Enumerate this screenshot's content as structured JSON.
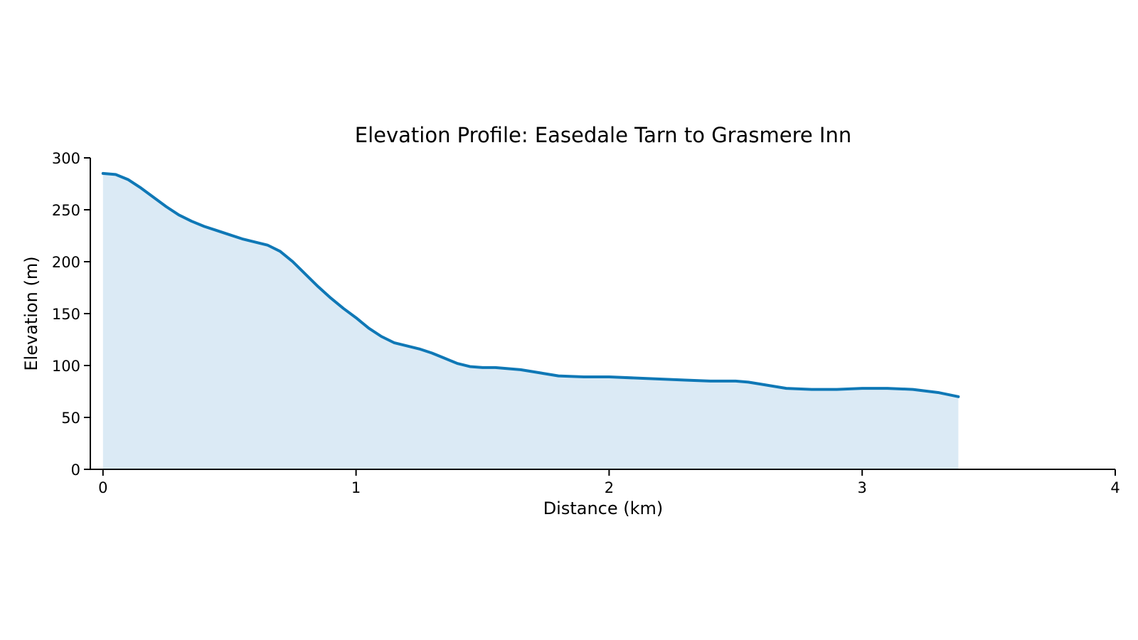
{
  "chart_data": {
    "type": "area",
    "title": "Elevation Profile: Easedale Tarn to Grasmere Inn",
    "xlabel": "Distance (km)",
    "ylabel": "Elevation (m)",
    "xlim": [
      -0.05,
      4
    ],
    "ylim": [
      0,
      300
    ],
    "xticks": [
      "0",
      "1",
      "2",
      "3",
      "4"
    ],
    "yticks": [
      "0",
      "50",
      "100",
      "150",
      "200",
      "250",
      "300"
    ],
    "grid": false,
    "legend": "none",
    "colors": {
      "line": "#0f78b6",
      "fill": "#dbeaf5"
    },
    "series": [
      {
        "x": [
          0,
          0.05,
          0.1,
          0.15,
          0.2,
          0.25,
          0.3,
          0.35,
          0.4,
          0.45,
          0.5,
          0.55,
          0.6,
          0.65,
          0.7,
          0.75,
          0.8,
          0.85,
          0.9,
          0.95,
          1.0,
          1.05,
          1.1,
          1.15,
          1.2,
          1.25,
          1.3,
          1.35,
          1.4,
          1.45,
          1.5,
          1.55,
          1.6,
          1.65,
          1.7,
          1.8,
          1.9,
          2.0,
          2.1,
          2.2,
          2.3,
          2.4,
          2.5,
          2.55,
          2.6,
          2.7,
          2.8,
          2.9,
          3.0,
          3.1,
          3.2,
          3.3,
          3.38
        ],
        "y": [
          285,
          284,
          279,
          271,
          262,
          253,
          245,
          239,
          234,
          230,
          226,
          222,
          219,
          216,
          210,
          200,
          188,
          176,
          165,
          155,
          146,
          136,
          128,
          122,
          119,
          116,
          112,
          107,
          102,
          99,
          98,
          98,
          97,
          96,
          94,
          90,
          89,
          89,
          88,
          87,
          86,
          85,
          85,
          84,
          82,
          78,
          77,
          77,
          78,
          78,
          77,
          74,
          70
        ]
      }
    ]
  }
}
